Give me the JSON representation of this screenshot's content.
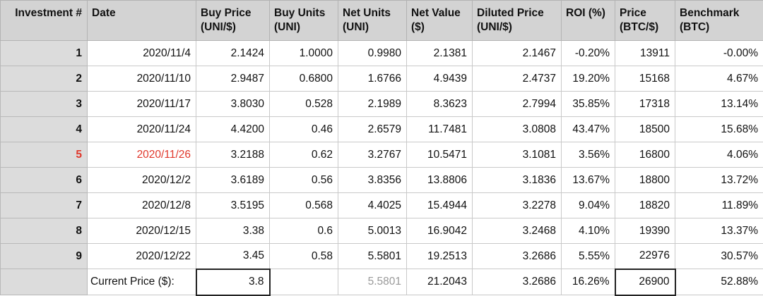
{
  "headers": [
    {
      "line1": "Investment #",
      "line2": ""
    },
    {
      "line1": "Date",
      "line2": ""
    },
    {
      "line1": "Buy Price",
      "line2": "(UNI/$)"
    },
    {
      "line1": "Buy Units",
      "line2": "(UNI)"
    },
    {
      "line1": "Net Units",
      "line2": "(UNI)"
    },
    {
      "line1": "Net Value",
      "line2": "($)"
    },
    {
      "line1": "Diluted Price",
      "line2": "(UNI/$)"
    },
    {
      "line1": "ROI (%)",
      "line2": ""
    },
    {
      "line1": "Price",
      "line2": "(BTC/$)"
    },
    {
      "line1": "Benchmark",
      "line2": "(BTC)"
    }
  ],
  "rows": [
    {
      "n": "1",
      "date": "2020/11/4",
      "buy_price": "2.1424",
      "buy_units": "1.0000",
      "net_units": "0.9980",
      "net_value": "2.1381",
      "diluted": "2.1467",
      "roi": "-0.20%",
      "btc_price": "13911",
      "benchmark": "-0.00%"
    },
    {
      "n": "2",
      "date": "2020/11/10",
      "buy_price": "2.9487",
      "buy_units": "0.6800",
      "net_units": "1.6766",
      "net_value": "4.9439",
      "diluted": "2.4737",
      "roi": "19.20%",
      "btc_price": "15168",
      "benchmark": "4.67%"
    },
    {
      "n": "3",
      "date": "2020/11/17",
      "buy_price": "3.8030",
      "buy_units": "0.528",
      "net_units": "2.1989",
      "net_value": "8.3623",
      "diluted": "2.7994",
      "roi": "35.85%",
      "btc_price": "17318",
      "benchmark": "13.14%"
    },
    {
      "n": "4",
      "date": "2020/11/24",
      "buy_price": "4.4200",
      "buy_units": "0.46",
      "net_units": "2.6579",
      "net_value": "11.7481",
      "diluted": "3.0808",
      "roi": "43.47%",
      "btc_price": "18500",
      "benchmark": "15.68%"
    },
    {
      "n": "5",
      "date": "2020/11/26",
      "buy_price": "3.2188",
      "buy_units": "0.62",
      "net_units": "3.2767",
      "net_value": "10.5471",
      "diluted": "3.1081",
      "roi": "3.56%",
      "btc_price": "16800",
      "benchmark": "4.06%"
    },
    {
      "n": "6",
      "date": "2020/12/2",
      "buy_price": "3.6189",
      "buy_units": "0.56",
      "net_units": "3.8356",
      "net_value": "13.8806",
      "diluted": "3.1836",
      "roi": "13.67%",
      "btc_price": "18800",
      "benchmark": "13.72%"
    },
    {
      "n": "7",
      "date": "2020/12/8",
      "buy_price": "3.5195",
      "buy_units": "0.568",
      "net_units": "4.4025",
      "net_value": "15.4944",
      "diluted": "3.2278",
      "roi": "9.04%",
      "btc_price": "18820",
      "benchmark": "11.89%"
    },
    {
      "n": "8",
      "date": "2020/12/15",
      "buy_price": "3.38",
      "buy_units": "0.6",
      "net_units": "5.0013",
      "net_value": "16.9042",
      "diluted": "3.2468",
      "roi": "4.10%",
      "btc_price": "19390",
      "benchmark": "13.37%"
    },
    {
      "n": "9",
      "date": "2020/12/22",
      "buy_price": "3.45",
      "buy_units": "0.58",
      "net_units": "5.5801",
      "net_value": "19.2513",
      "diluted": "3.2686",
      "roi": "5.55%",
      "btc_price": "22976",
      "benchmark": "30.57%"
    }
  ],
  "summary": {
    "label": "Current Price ($):",
    "buy_price": "3.8",
    "buy_units": "",
    "net_units": "5.5801",
    "net_value": "21.2043",
    "diluted": "3.2686",
    "roi": "16.26%",
    "btc_price": "26900",
    "benchmark": "52.88%"
  },
  "colors": {
    "header_bg": "#d3d3d3",
    "index_bg": "#dcdcdc",
    "highlight_red": "#e0382c",
    "muted_gray": "#9a9a9a"
  }
}
